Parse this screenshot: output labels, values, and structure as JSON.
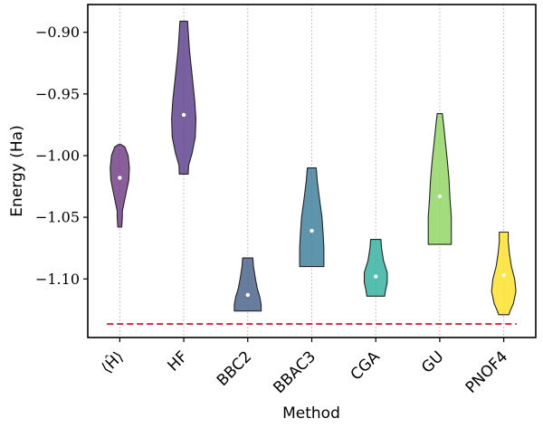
{
  "chart_data": {
    "type": "violin",
    "xlabel": "Method",
    "ylabel": "Energy (Ha)",
    "ylim": [
      -1.1475,
      -0.8775
    ],
    "yticks": [
      -0.9,
      -0.95,
      -1.0,
      -1.05,
      -1.1
    ],
    "ytick_labels": [
      "−0.90",
      "−0.95",
      "−1.00",
      "−1.05",
      "−1.10"
    ],
    "categories": [
      "⟨Ĥ⟩",
      "HF",
      "BBC2",
      "BBAC3",
      "CGA",
      "GU",
      "PNOF4"
    ],
    "grid": "vertical dotted",
    "reference_line": {
      "value": -1.1365,
      "color": "#e0102a",
      "style": "dashed"
    },
    "violins": [
      {
        "category": "⟨Ĥ⟩",
        "color": "#6f3a84",
        "min": -1.058,
        "max": -0.991,
        "median": -1.018,
        "profile": [
          [
            -0.991,
            0.04
          ],
          [
            -0.993,
            0.16
          ],
          [
            -1.0,
            0.26
          ],
          [
            -1.01,
            0.3
          ],
          [
            -1.02,
            0.28
          ],
          [
            -1.03,
            0.2
          ],
          [
            -1.04,
            0.12
          ],
          [
            -1.045,
            0.08
          ],
          [
            -1.05,
            0.08
          ],
          [
            -1.058,
            0.06
          ]
        ]
      },
      {
        "category": "HF",
        "color": "#5b3d8c",
        "min": -1.015,
        "max": -0.891,
        "median": -0.967,
        "profile": [
          [
            -0.891,
            0.12
          ],
          [
            -0.9,
            0.14
          ],
          [
            -0.915,
            0.18
          ],
          [
            -0.935,
            0.26
          ],
          [
            -0.955,
            0.34
          ],
          [
            -0.97,
            0.38
          ],
          [
            -0.985,
            0.36
          ],
          [
            -0.998,
            0.26
          ],
          [
            -1.008,
            0.15
          ],
          [
            -1.015,
            0.14
          ]
        ]
      },
      {
        "category": "BBC2",
        "color": "#476089",
        "min": -1.126,
        "max": -1.083,
        "median": -1.113,
        "profile": [
          [
            -1.083,
            0.16
          ],
          [
            -1.09,
            0.18
          ],
          [
            -1.1,
            0.24
          ],
          [
            -1.108,
            0.3
          ],
          [
            -1.115,
            0.38
          ],
          [
            -1.121,
            0.42
          ],
          [
            -1.126,
            0.42
          ]
        ]
      },
      {
        "category": "BBAC3",
        "color": "#3a7e9a",
        "min": -1.09,
        "max": -1.01,
        "median": -1.061,
        "profile": [
          [
            -1.01,
            0.14
          ],
          [
            -1.02,
            0.17
          ],
          [
            -1.035,
            0.24
          ],
          [
            -1.05,
            0.32
          ],
          [
            -1.065,
            0.36
          ],
          [
            -1.075,
            0.38
          ],
          [
            -1.083,
            0.38
          ],
          [
            -1.09,
            0.38
          ]
        ]
      },
      {
        "category": "CGA",
        "color": "#2fb09c",
        "min": -1.114,
        "max": -1.068,
        "median": -1.098,
        "profile": [
          [
            -1.068,
            0.16
          ],
          [
            -1.075,
            0.18
          ],
          [
            -1.085,
            0.24
          ],
          [
            -1.095,
            0.36
          ],
          [
            -1.103,
            0.36
          ],
          [
            -1.11,
            0.3
          ],
          [
            -1.114,
            0.28
          ]
        ]
      },
      {
        "category": "GU",
        "color": "#8fd45f",
        "min": -1.072,
        "max": -0.966,
        "median": -1.033,
        "profile": [
          [
            -0.966,
            0.08
          ],
          [
            -0.975,
            0.12
          ],
          [
            -0.99,
            0.18
          ],
          [
            -1.005,
            0.24
          ],
          [
            -1.02,
            0.29
          ],
          [
            -1.035,
            0.32
          ],
          [
            -1.05,
            0.36
          ],
          [
            -1.06,
            0.36
          ],
          [
            -1.072,
            0.36
          ]
        ]
      },
      {
        "category": "PNOF4",
        "color": "#fde024",
        "min": -1.129,
        "max": -1.062,
        "median": -1.097,
        "profile": [
          [
            -1.062,
            0.14
          ],
          [
            -1.07,
            0.14
          ],
          [
            -1.08,
            0.18
          ],
          [
            -1.09,
            0.24
          ],
          [
            -1.1,
            0.34
          ],
          [
            -1.11,
            0.38
          ],
          [
            -1.12,
            0.3
          ],
          [
            -1.126,
            0.2
          ],
          [
            -1.129,
            0.16
          ]
        ]
      }
    ]
  }
}
